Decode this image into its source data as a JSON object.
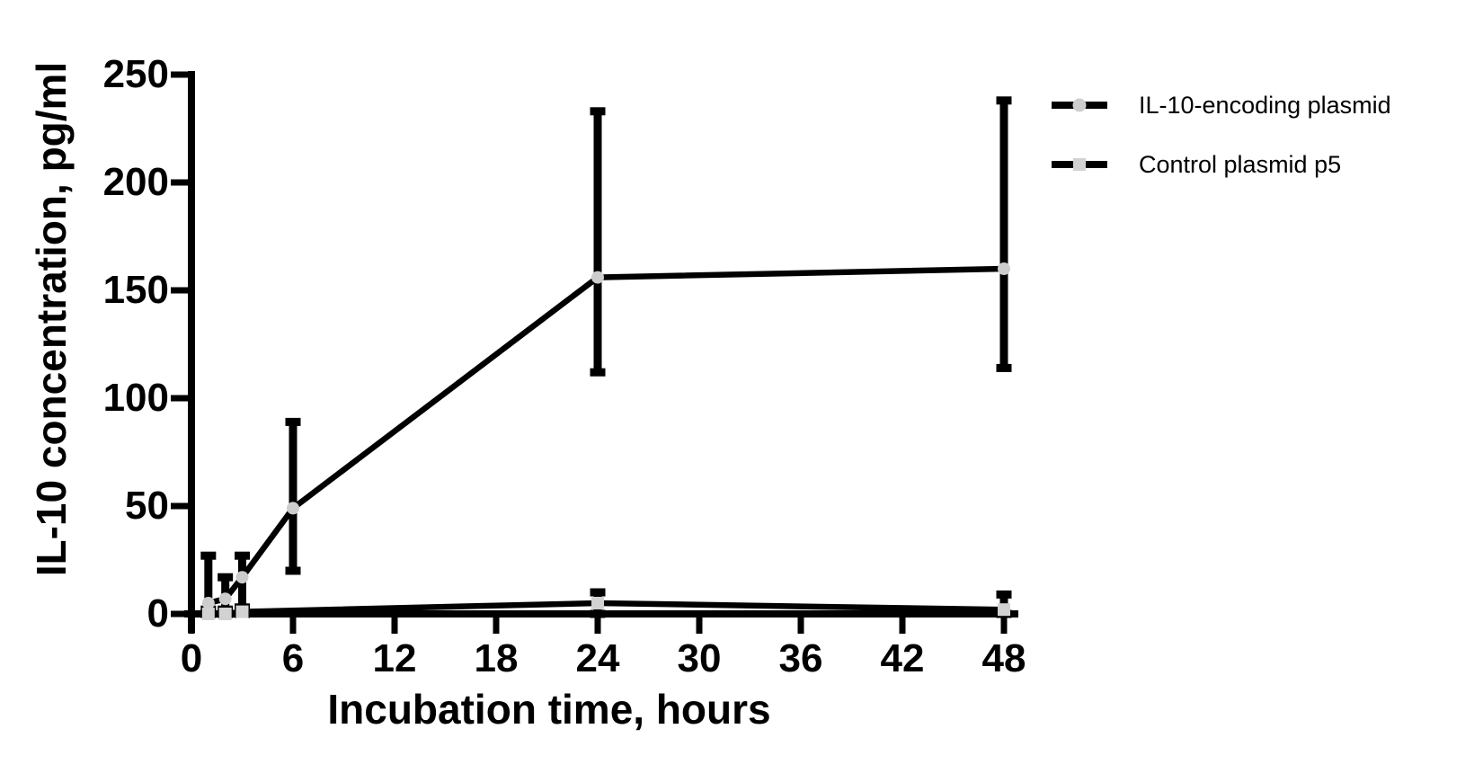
{
  "figure": {
    "background": "#ffffff",
    "axis_color": "#000000",
    "text_color": "#000000"
  },
  "chart_data": {
    "type": "line",
    "title": "",
    "xlabel": "Incubation time, hours",
    "ylabel": "IL-10 concentration, pg/ml",
    "xlim": [
      0,
      48
    ],
    "ylim": [
      0,
      250
    ],
    "x_ticks": [
      0,
      6,
      12,
      18,
      24,
      30,
      36,
      42,
      48
    ],
    "y_ticks": [
      0,
      50,
      100,
      150,
      200,
      250
    ],
    "grid": false,
    "legend_position": "top-right",
    "error_bars": true,
    "series": [
      {
        "name": "IL-10-encoding plasmid",
        "marker": "circle",
        "marker_color": "#cdcdcd",
        "line_color": "#000000",
        "points": [
          {
            "x": 1,
            "y": 5,
            "err_low": 0,
            "err_high": 27
          },
          {
            "x": 2,
            "y": 7,
            "err_low": 0,
            "err_high": 17
          },
          {
            "x": 3,
            "y": 17,
            "err_low": 2,
            "err_high": 27
          },
          {
            "x": 6,
            "y": 49,
            "err_low": 20,
            "err_high": 89
          },
          {
            "x": 24,
            "y": 156,
            "err_low": 112,
            "err_high": 233
          },
          {
            "x": 48,
            "y": 160,
            "err_low": 114,
            "err_high": 238
          }
        ]
      },
      {
        "name": "Control plasmid p5",
        "marker": "square",
        "marker_color": "#d2d2d2",
        "line_color": "#000000",
        "points": [
          {
            "x": 1,
            "y": 0,
            "err_low": 0,
            "err_high": 2
          },
          {
            "x": 2,
            "y": 0,
            "err_low": 0,
            "err_high": 2
          },
          {
            "x": 3,
            "y": 1,
            "err_low": 0,
            "err_high": 3
          },
          {
            "x": 24,
            "y": 5,
            "err_low": 0,
            "err_high": 10
          },
          {
            "x": 48,
            "y": 2,
            "err_low": 0,
            "err_high": 9
          }
        ]
      }
    ]
  }
}
